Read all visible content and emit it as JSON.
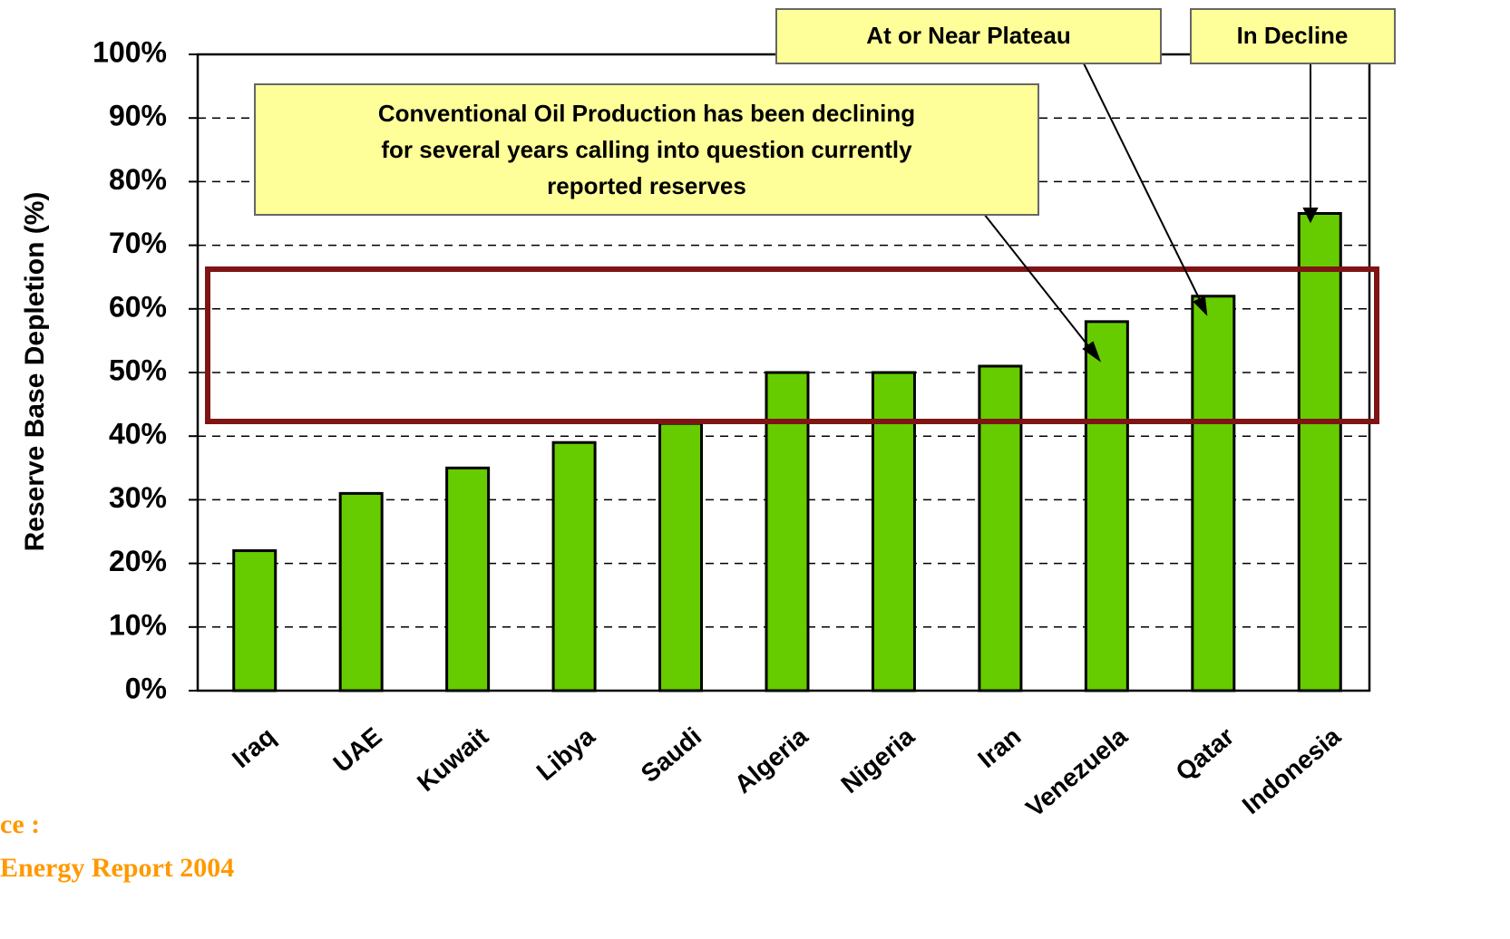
{
  "chart_data": {
    "type": "bar",
    "y_label": "Reserve Base Depletion (%)",
    "categories": [
      "Iraq",
      "UAE",
      "Kuwait",
      "Libya",
      "Saudi",
      "Algeria",
      "Nigeria",
      "Iran",
      "Venezuela",
      "Qatar",
      "Indonesia"
    ],
    "values": [
      22,
      31,
      35,
      39,
      42,
      50,
      50,
      51,
      58,
      62,
      75
    ],
    "color": "#66cc00",
    "ylim": [
      0,
      100
    ],
    "yticks": [
      {
        "value": 0,
        "label": "0%"
      },
      {
        "value": 10,
        "label": "10%"
      },
      {
        "value": 20,
        "label": "20%"
      },
      {
        "value": 30,
        "label": "30%"
      },
      {
        "value": 40,
        "label": "40%"
      },
      {
        "value": 50,
        "label": "50%"
      },
      {
        "value": 60,
        "label": "60%"
      },
      {
        "value": 70,
        "label": "70%"
      },
      {
        "value": 80,
        "label": "80%"
      },
      {
        "value": 90,
        "label": "90%"
      },
      {
        "value": 100,
        "label": "100%"
      }
    ],
    "grid": true,
    "annotations": [
      {
        "lines": [
          "Conventional Oil Production has been declining",
          "for several years calling into question currently",
          "reported reserves"
        ]
      },
      {
        "lines": [
          "At or Near Plateau"
        ]
      },
      {
        "lines": [
          "In Decline"
        ]
      }
    ],
    "source": [
      "ce :",
      "Energy Report 2004"
    ]
  }
}
